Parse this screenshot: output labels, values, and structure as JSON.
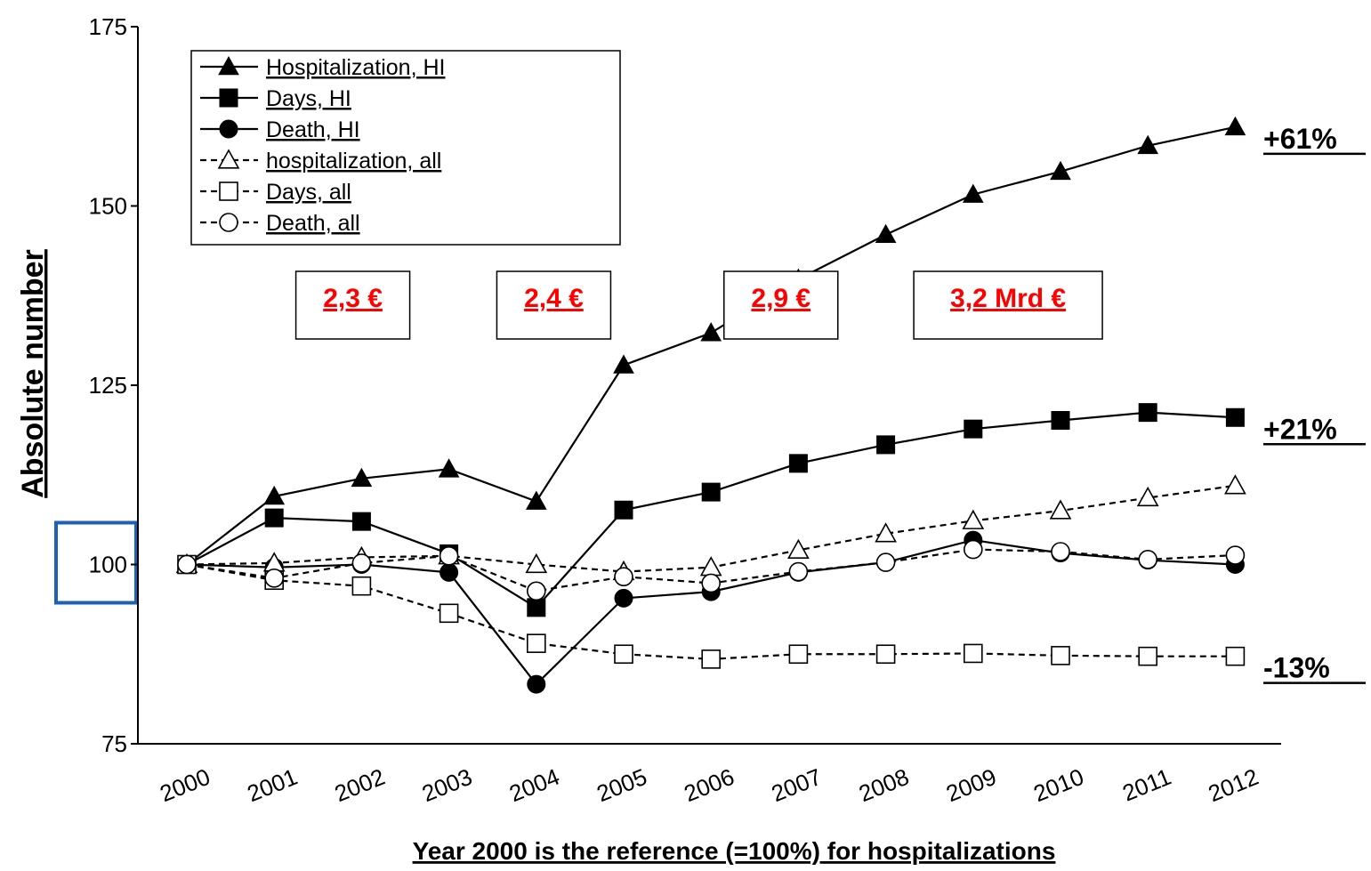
{
  "chart_data": {
    "type": "line",
    "x": [
      "2000",
      "2001",
      "2002",
      "2003",
      "2004",
      "2005",
      "2006",
      "2007",
      "2008",
      "2009",
      "2010",
      "2011",
      "2012"
    ],
    "ylabel": "Absolute number",
    "xlabel": "Year 2000 is the reference (=100%) for hospitalizations",
    "ylim": [
      75,
      175
    ],
    "yticks": [
      "75",
      "100",
      "125",
      "150",
      "175"
    ],
    "grid": false,
    "legend_position": "top-left",
    "series": [
      {
        "name": "Hospitalization, HI",
        "marker": "triangle-filled",
        "line": "solid",
        "values": [
          100,
          109.5,
          112,
          113.3,
          108.8,
          127.8,
          132.3,
          139.8,
          146,
          151.6,
          154.8,
          158.4,
          161
        ]
      },
      {
        "name": "Days, HI",
        "marker": "square-filled",
        "line": "solid",
        "values": [
          100,
          106.5,
          106,
          101.5,
          94,
          107.6,
          110.1,
          114.1,
          116.7,
          118.9,
          120.1,
          121.2,
          120.5
        ]
      },
      {
        "name": "Death, HI",
        "marker": "circle-filled",
        "line": "solid",
        "values": [
          100,
          99.6,
          100,
          98.9,
          83.3,
          95.3,
          96.2,
          98.9,
          100.3,
          103.4,
          101.6,
          100.6,
          100
        ]
      },
      {
        "name": "hospitalization, all",
        "marker": "triangle-open",
        "line": "dashed",
        "values": [
          100,
          100.2,
          101,
          101.2,
          100,
          99,
          99.6,
          102,
          104.3,
          106.1,
          107.5,
          109.3,
          111
        ]
      },
      {
        "name": "Days, all",
        "marker": "square-open",
        "line": "dashed",
        "values": [
          100,
          97.8,
          97,
          93.2,
          89,
          87.5,
          86.8,
          87.5,
          87.5,
          87.6,
          87.3,
          87.2,
          87.2
        ]
      },
      {
        "name": "Death, all",
        "marker": "circle-open",
        "line": "dashed",
        "values": [
          100,
          98.1,
          100.2,
          101.2,
          96.3,
          98.3,
          97.4,
          99,
          100.3,
          102.1,
          101.8,
          100.7,
          101.3
        ]
      }
    ],
    "cost_annotations": [
      {
        "text": "2,3 €",
        "near_year": "2001.9"
      },
      {
        "text": "2,4 €",
        "near_year": "2004.2"
      },
      {
        "text": "2,9 €",
        "near_year": "2006.8"
      },
      {
        "text": "3,2 Mrd €",
        "near_year": "2009.4"
      }
    ],
    "change_annotations": [
      {
        "text": "+61%",
        "series": "Hospitalization, HI"
      },
      {
        "text": "+21%",
        "series": "Days, HI"
      },
      {
        "text": "-13%",
        "series": "Days, all"
      }
    ],
    "colors": {
      "lines": "#000000",
      "cost_text": "#ff0000",
      "highlight_box": "#1f5fb4"
    }
  }
}
